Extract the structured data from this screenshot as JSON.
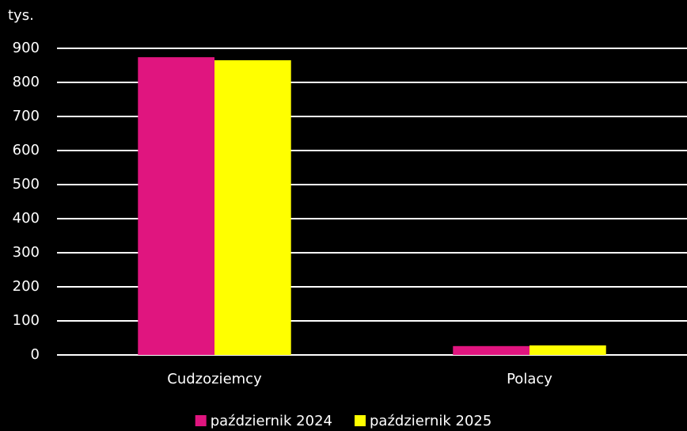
{
  "chart_data": {
    "type": "bar",
    "y_axis_label": "tys.",
    "categories": [
      "Cudzoziemcy",
      "Polacy"
    ],
    "series": [
      {
        "name": "październik 2024",
        "color": "#e0157f",
        "values": [
          874,
          26
        ]
      },
      {
        "name": "październik 2025",
        "color": "#ffff00",
        "values": [
          865,
          28
        ]
      }
    ],
    "ylim": [
      0,
      900
    ],
    "yticks": [
      0,
      100,
      200,
      300,
      400,
      500,
      600,
      700,
      800,
      900
    ],
    "grid": true,
    "legend": "bottom"
  }
}
